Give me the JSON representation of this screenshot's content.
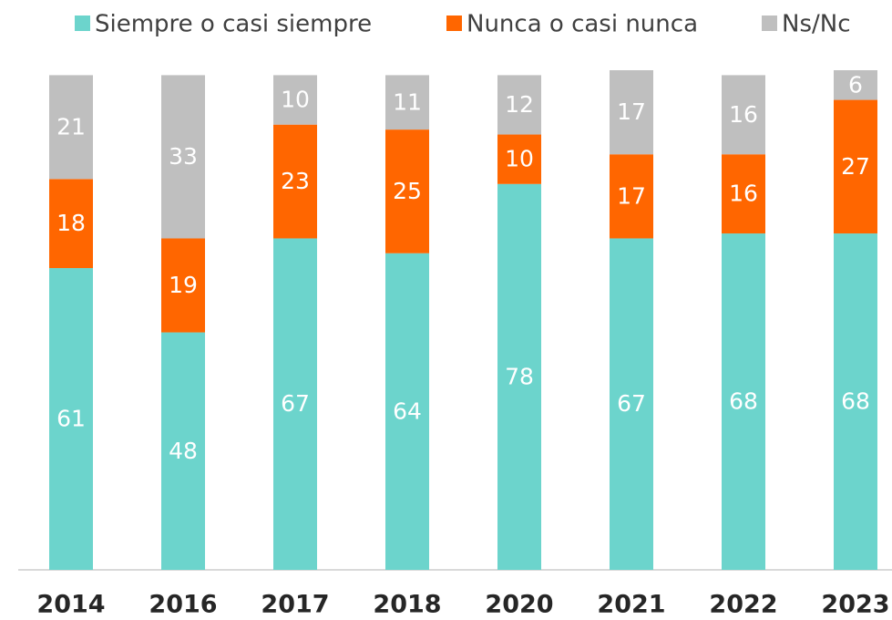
{
  "chart_data": {
    "type": "stacked_bar",
    "categories": [
      "2014",
      "2016",
      "2017",
      "2018",
      "2020",
      "2021",
      "2022",
      "2023"
    ],
    "series": [
      {
        "name": "Siempre o casi siempre",
        "color": "#6cd4cc",
        "values": [
          61,
          48,
          67,
          64,
          78,
          67,
          68,
          68
        ]
      },
      {
        "name": "Nunca o casi nunca",
        "color": "#ff6600",
        "values": [
          18,
          19,
          23,
          25,
          10,
          17,
          16,
          27
        ]
      },
      {
        "name": "Ns/Nc",
        "color": "#bfbfbf",
        "values": [
          21,
          33,
          10,
          11,
          12,
          17,
          16,
          6
        ]
      }
    ]
  }
}
